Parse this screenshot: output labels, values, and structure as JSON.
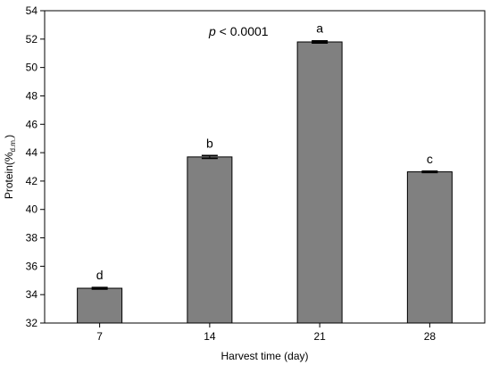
{
  "chart_data": {
    "type": "bar",
    "categories": [
      "7",
      "14",
      "21",
      "28"
    ],
    "values": [
      34.45,
      43.7,
      51.8,
      42.65
    ],
    "errors": [
      0.06,
      0.1,
      0.08,
      0.05
    ],
    "letters": [
      "d",
      "b",
      "a",
      "c"
    ],
    "annotation_italic": "p",
    "annotation_rest": " < 0.0001",
    "xlabel": "Harvest time (day)",
    "ylabel_main": "Protein(%",
    "ylabel_sub": "d.m.",
    "ylabel_close": ")",
    "ylim": [
      32,
      54
    ],
    "yticks": [
      32,
      34,
      36,
      38,
      40,
      42,
      44,
      46,
      48,
      50,
      52,
      54
    ],
    "bar_color": "#808080",
    "grid": false
  }
}
